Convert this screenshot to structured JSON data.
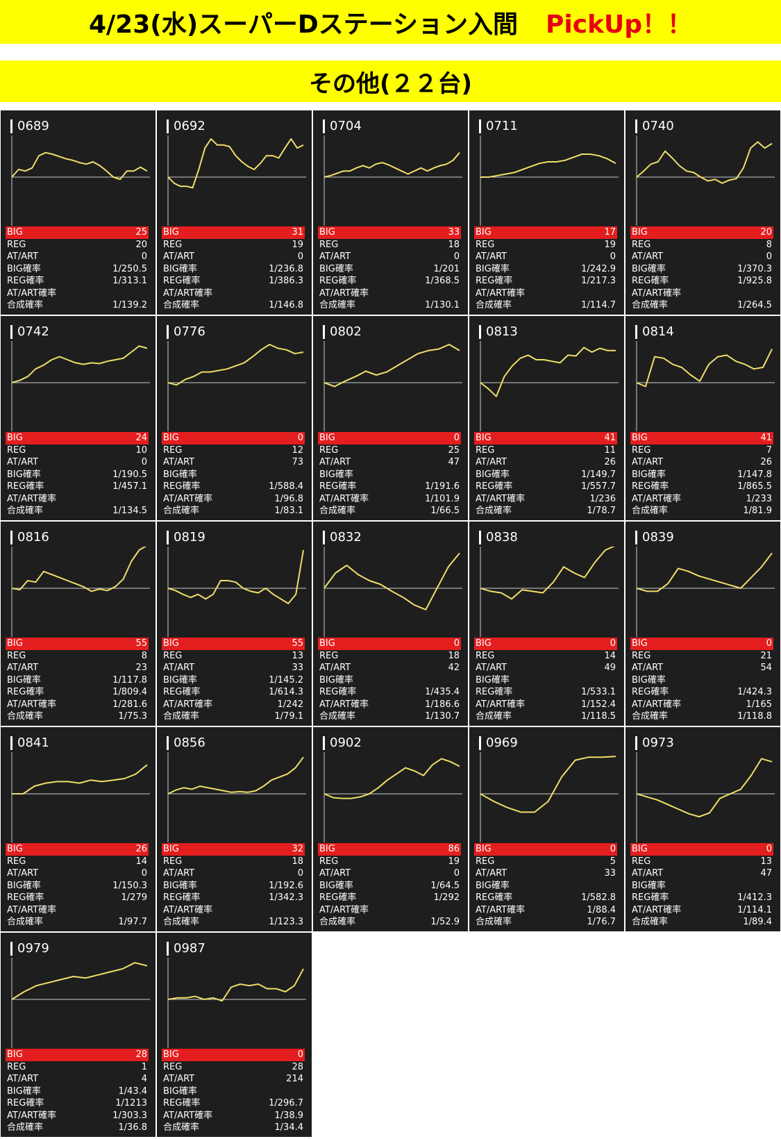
{
  "header": {
    "title": "4/23(水)スーパーDステーション入間",
    "pickup": "PickUp！！"
  },
  "section": {
    "title": "その他(２２台)"
  },
  "colors": {
    "banner": "#ffff00",
    "pickup": "#e60012",
    "card_bg": "#1e1e1e",
    "big_row": "#e41e1e",
    "graph_line": "#f0df6a"
  },
  "labels": {
    "big": "BIG",
    "reg": "REG",
    "at": "AT/ART",
    "big_rate": "BIG確率",
    "reg_rate": "REG確率",
    "at_rate": "AT/ART確率",
    "total_rate": "合成確率"
  },
  "machines": [
    {
      "num": "0689",
      "big": "25",
      "reg": "20",
      "at": "0",
      "big_rate": "1/250.5",
      "reg_rate": "1/313.1",
      "at_rate": "",
      "total_rate": "1/139.2",
      "graph": [
        0,
        10,
        8,
        12,
        28,
        32,
        30,
        27,
        24,
        22,
        19,
        17,
        20,
        15,
        8,
        0,
        -3,
        8,
        8,
        13,
        8
      ]
    },
    {
      "num": "0692",
      "big": "31",
      "reg": "19",
      "at": "0",
      "big_rate": "1/236.8",
      "reg_rate": "1/386.3",
      "at_rate": "",
      "total_rate": "1/146.8",
      "graph": [
        0,
        -8,
        -12,
        -12,
        -14,
        10,
        38,
        50,
        42,
        42,
        40,
        28,
        20,
        14,
        10,
        18,
        28,
        28,
        25,
        38,
        50,
        38,
        42
      ]
    },
    {
      "num": "0704",
      "big": "33",
      "reg": "18",
      "at": "0",
      "big_rate": "1/201",
      "reg_rate": "1/368.5",
      "at_rate": "",
      "total_rate": "1/130.1",
      "graph": [
        0,
        2,
        5,
        8,
        8,
        12,
        15,
        12,
        17,
        19,
        16,
        12,
        8,
        4,
        8,
        12,
        8,
        12,
        15,
        17,
        22,
        32
      ]
    },
    {
      "num": "0711",
      "big": "17",
      "reg": "19",
      "at": "0",
      "big_rate": "1/242.9",
      "reg_rate": "1/217.3",
      "at_rate": "",
      "total_rate": "1/114.7",
      "graph": [
        0,
        0,
        2,
        4,
        6,
        10,
        14,
        18,
        20,
        20,
        22,
        26,
        30,
        30,
        28,
        24,
        18
      ]
    },
    {
      "num": "0740",
      "big": "20",
      "reg": "8",
      "at": "0",
      "big_rate": "1/370.3",
      "reg_rate": "1/925.8",
      "at_rate": "",
      "total_rate": "1/264.5",
      "graph": [
        0,
        8,
        17,
        20,
        34,
        25,
        15,
        8,
        6,
        0,
        -5,
        -3,
        -8,
        -4,
        -2,
        12,
        38,
        46,
        38,
        44
      ]
    },
    {
      "num": "0742",
      "big": "24",
      "reg": "10",
      "at": "0",
      "big_rate": "1/190.5",
      "reg_rate": "1/457.1",
      "at_rate": "",
      "total_rate": "1/134.5",
      "graph": [
        0,
        3,
        8,
        18,
        23,
        30,
        34,
        30,
        26,
        24,
        26,
        25,
        28,
        30,
        32,
        40,
        48,
        45
      ]
    },
    {
      "num": "0776",
      "big": "0",
      "reg": "12",
      "at": "73",
      "big_rate": "",
      "reg_rate": "1/588.4",
      "at_rate": "1/96.8",
      "total_rate": "1/83.1",
      "graph": [
        0,
        -3,
        4,
        8,
        14,
        14,
        16,
        18,
        22,
        26,
        34,
        43,
        50,
        45,
        43,
        38,
        40
      ]
    },
    {
      "num": "0802",
      "big": "0",
      "reg": "25",
      "at": "47",
      "big_rate": "",
      "reg_rate": "1/191.6",
      "at_rate": "1/101.9",
      "total_rate": "1/66.5",
      "graph": [
        0,
        -5,
        2,
        8,
        15,
        10,
        14,
        22,
        30,
        38,
        42,
        44,
        50,
        42
      ]
    },
    {
      "num": "0813",
      "big": "41",
      "reg": "11",
      "at": "26",
      "big_rate": "1/149.7",
      "reg_rate": "1/557.7",
      "at_rate": "1/236",
      "total_rate": "1/78.7",
      "graph": [
        0,
        -8,
        -18,
        8,
        22,
        32,
        36,
        30,
        30,
        28,
        26,
        36,
        35,
        46,
        40,
        45,
        42,
        42
      ]
    },
    {
      "num": "0814",
      "big": "41",
      "reg": "7",
      "at": "26",
      "big_rate": "1/147.8",
      "reg_rate": "1/865.5",
      "at_rate": "1/233",
      "total_rate": "1/81.9",
      "graph": [
        0,
        -5,
        34,
        32,
        24,
        20,
        10,
        2,
        24,
        34,
        36,
        28,
        24,
        18,
        20,
        44
      ]
    },
    {
      "num": "0816",
      "big": "55",
      "reg": "8",
      "at": "23",
      "big_rate": "1/117.8",
      "reg_rate": "1/809.4",
      "at_rate": "1/281.6",
      "total_rate": "1/75.3",
      "graph": [
        0,
        -2,
        10,
        8,
        22,
        18,
        14,
        10,
        6,
        2,
        -4,
        -1,
        -3,
        2,
        12,
        35,
        50,
        56
      ]
    },
    {
      "num": "0819",
      "big": "55",
      "reg": "13",
      "at": "33",
      "big_rate": "1/145.2",
      "reg_rate": "1/614.3",
      "at_rate": "1/242",
      "total_rate": "1/79.1",
      "graph": [
        0,
        -3,
        -8,
        -12,
        -8,
        -14,
        -8,
        10,
        10,
        8,
        0,
        -4,
        -6,
        0,
        -8,
        -14,
        -20,
        -8,
        50
      ]
    },
    {
      "num": "0832",
      "big": "0",
      "reg": "18",
      "at": "42",
      "big_rate": "",
      "reg_rate": "1/435.4",
      "at_rate": "1/186.6",
      "total_rate": "1/130.7",
      "graph": [
        0,
        20,
        30,
        18,
        10,
        5,
        -4,
        -12,
        -22,
        -28,
        0,
        28,
        46
      ]
    },
    {
      "num": "0838",
      "big": "0",
      "reg": "14",
      "at": "49",
      "big_rate": "",
      "reg_rate": "1/533.1",
      "at_rate": "1/152.4",
      "total_rate": "1/118.5",
      "graph": [
        0,
        -4,
        -6,
        -14,
        -2,
        -4,
        -6,
        8,
        28,
        20,
        14,
        34,
        50,
        56
      ]
    },
    {
      "num": "0839",
      "big": "0",
      "reg": "21",
      "at": "54",
      "big_rate": "",
      "reg_rate": "1/424.3",
      "at_rate": "1/165",
      "total_rate": "1/118.8",
      "graph": [
        0,
        -4,
        -4,
        6,
        26,
        22,
        16,
        12,
        8,
        4,
        0,
        14,
        28,
        46
      ]
    },
    {
      "num": "0841",
      "big": "26",
      "reg": "14",
      "at": "0",
      "big_rate": "1/150.3",
      "reg_rate": "1/279",
      "at_rate": "",
      "total_rate": "1/97.7",
      "graph": [
        0,
        0,
        10,
        14,
        16,
        16,
        14,
        18,
        16,
        18,
        20,
        26,
        38
      ]
    },
    {
      "num": "0856",
      "big": "32",
      "reg": "18",
      "at": "0",
      "big_rate": "1/192.6",
      "reg_rate": "1/342.3",
      "at_rate": "",
      "total_rate": "1/123.3",
      "graph": [
        0,
        5,
        8,
        6,
        10,
        8,
        6,
        4,
        2,
        3,
        2,
        4,
        10,
        18,
        22,
        26,
        34,
        48
      ]
    },
    {
      "num": "0902",
      "big": "86",
      "reg": "19",
      "at": "0",
      "big_rate": "1/64.5",
      "reg_rate": "1/292",
      "at_rate": "",
      "total_rate": "1/52.9",
      "graph": [
        0,
        -5,
        -6,
        -6,
        -4,
        0,
        8,
        18,
        26,
        34,
        30,
        24,
        38,
        46,
        42,
        36
      ]
    },
    {
      "num": "0969",
      "big": "0",
      "reg": "5",
      "at": "33",
      "big_rate": "",
      "reg_rate": "1/582.8",
      "at_rate": "1/88.4",
      "total_rate": "1/76.7",
      "graph": [
        0,
        -10,
        -18,
        -24,
        -24,
        -10,
        22,
        44,
        48,
        48,
        49
      ]
    },
    {
      "num": "0973",
      "big": "0",
      "reg": "13",
      "at": "47",
      "big_rate": "",
      "reg_rate": "1/412.3",
      "at_rate": "1/114.1",
      "total_rate": "1/89.4",
      "graph": [
        0,
        -4,
        -8,
        -14,
        -20,
        -26,
        -30,
        -25,
        -6,
        0,
        6,
        24,
        46,
        42
      ]
    },
    {
      "num": "0979",
      "big": "28",
      "reg": "1",
      "at": "4",
      "big_rate": "1/43.4",
      "reg_rate": "1/1213",
      "at_rate": "1/303.3",
      "total_rate": "1/36.8",
      "graph": [
        0,
        10,
        18,
        22,
        26,
        30,
        28,
        32,
        36,
        40,
        48,
        44
      ]
    },
    {
      "num": "0987",
      "big": "0",
      "reg": "28",
      "at": "214",
      "big_rate": "",
      "reg_rate": "1/296.7",
      "at_rate": "1/38.9",
      "total_rate": "1/34.4",
      "graph": [
        0,
        2,
        2,
        4,
        0,
        2,
        -2,
        16,
        20,
        18,
        20,
        14,
        14,
        10,
        18,
        40
      ]
    }
  ]
}
